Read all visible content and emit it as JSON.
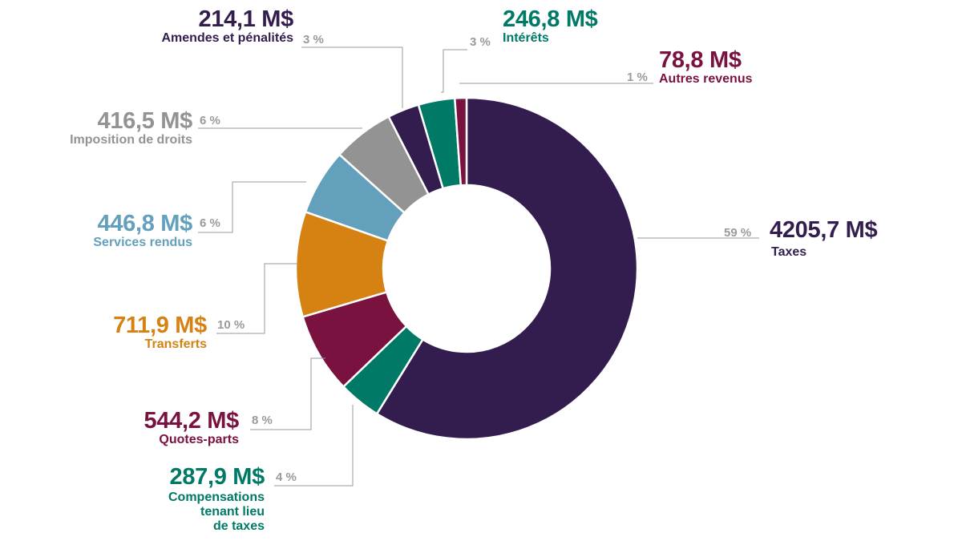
{
  "colors": {
    "taxes": "#331d4e",
    "compensations": "#007a66",
    "quotes": "#7a1240",
    "transferts": "#d58212",
    "services": "#62a0bb",
    "imposition": "#939393",
    "amendes": "#331d4e",
    "interets": "#007a66",
    "autres": "#7a1240",
    "pct_text": "#9a9a9a",
    "leader": "#9a9a9a"
  },
  "chart_data": {
    "type": "pie",
    "style": "donut",
    "unit": "M$",
    "slices": [
      {
        "key": "taxes",
        "name": "Taxes",
        "value_label": "4205,7 M$",
        "value": 4205.7,
        "percent_label": "59 %"
      },
      {
        "key": "compensations",
        "name": "Compensations tenant lieu de taxes",
        "name_lines": [
          "Compensations",
          "tenant lieu",
          "de taxes"
        ],
        "value_label": "287,9 M$",
        "value": 287.9,
        "percent_label": "4 %"
      },
      {
        "key": "quotes",
        "name": "Quotes-parts",
        "value_label": "544,2 M$",
        "value": 544.2,
        "percent_label": "8 %"
      },
      {
        "key": "transferts",
        "name": "Transferts",
        "value_label": "711,9 M$",
        "value": 711.9,
        "percent_label": "10 %"
      },
      {
        "key": "services",
        "name": "Services rendus",
        "value_label": "446,8 M$",
        "value": 446.8,
        "percent_label": "6 %"
      },
      {
        "key": "imposition",
        "name": "Imposition de droits",
        "value_label": "416,5 M$",
        "value": 416.5,
        "percent_label": "6 %"
      },
      {
        "key": "amendes",
        "name": "Amendes et pénalités",
        "value_label": "214,1 M$",
        "value": 214.1,
        "percent_label": "3 %"
      },
      {
        "key": "interets",
        "name": "Intérêts",
        "value_label": "246,8 M$",
        "value": 246.8,
        "percent_label": "3 %"
      },
      {
        "key": "autres",
        "name": "Autres revenus",
        "value_label": "78,8 M$",
        "value": 78.8,
        "percent_label": "1 %"
      }
    ]
  }
}
